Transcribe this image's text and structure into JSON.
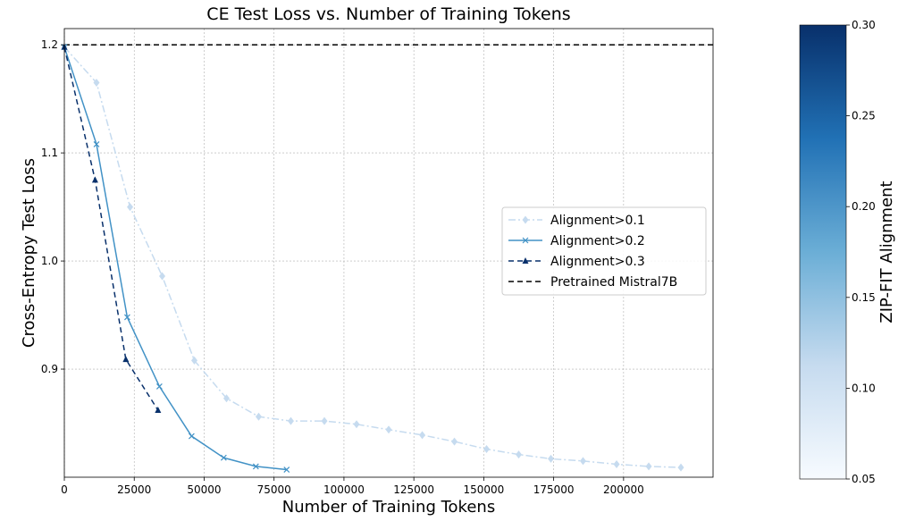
{
  "chart_data": {
    "type": "line",
    "title": "CE Test Loss vs. Number of Training Tokens",
    "xlabel": "Number of Training Tokens",
    "ylabel": "Cross-Entropy Test Loss",
    "xlim": [
      0,
      232000
    ],
    "ylim": [
      0.8,
      1.215
    ],
    "x_ticks": [
      0,
      25000,
      50000,
      75000,
      100000,
      125000,
      150000,
      175000,
      200000
    ],
    "y_ticks": [
      0.9,
      1.0,
      1.1,
      1.2
    ],
    "grid": true,
    "legend_position": "center-right",
    "series": [
      {
        "name": "Alignment>0.1",
        "color": "#c6dbef",
        "linestyle": "dashdot",
        "marker": "diamond",
        "x": [
          0,
          11500,
          23500,
          35000,
          46500,
          58000,
          69500,
          81000,
          93000,
          104500,
          116000,
          128000,
          139500,
          151000,
          162500,
          174000,
          185500,
          197500,
          209000,
          220500
        ],
        "y": [
          1.198,
          1.165,
          1.05,
          0.986,
          0.908,
          0.873,
          0.856,
          0.852,
          0.852,
          0.849,
          0.844,
          0.839,
          0.833,
          0.826,
          0.821,
          0.817,
          0.815,
          0.812,
          0.81,
          0.809
        ]
      },
      {
        "name": "Alignment>0.2",
        "color": "#4292c6",
        "linestyle": "solid",
        "marker": "x",
        "x": [
          0,
          11500,
          22500,
          34000,
          45500,
          57000,
          68500,
          79500
        ],
        "y": [
          1.198,
          1.108,
          0.948,
          0.884,
          0.838,
          0.818,
          0.81,
          0.807
        ]
      },
      {
        "name": "Alignment>0.3",
        "color": "#08306b",
        "linestyle": "dashed",
        "marker": "triangle",
        "x": [
          0,
          11000,
          22000,
          33500
        ],
        "y": [
          1.198,
          1.075,
          0.909,
          0.862
        ]
      }
    ],
    "reference_line": {
      "name": "Pretrained Mistral7B",
      "y": 1.2,
      "color": "#000000",
      "linestyle": "dashed"
    },
    "colorbar": {
      "label": "ZIP-FIT Alignment",
      "range": [
        0.05,
        0.3
      ],
      "ticks": [
        "0.05",
        "0.10",
        "0.15",
        "0.20",
        "0.25",
        "0.30"
      ],
      "color_low": "#f7fbff",
      "color_high": "#08306b"
    }
  }
}
